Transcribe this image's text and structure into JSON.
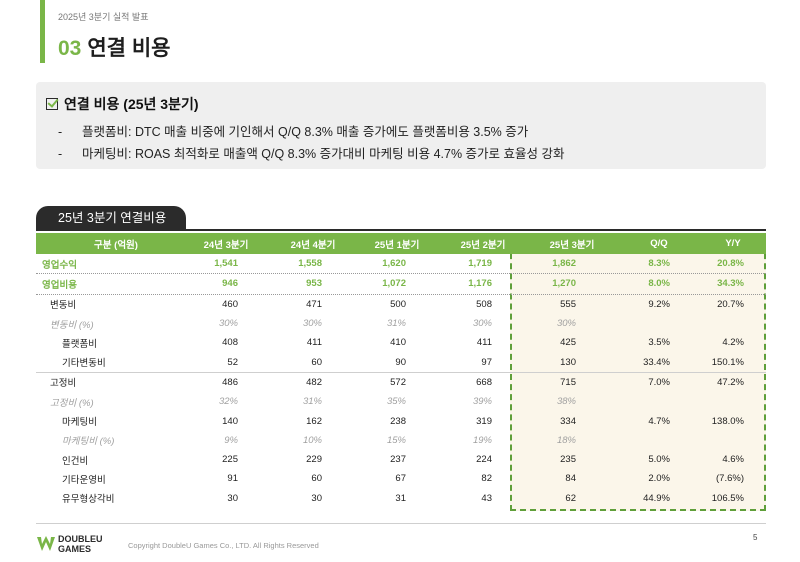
{
  "header": {
    "subtitle": "2025년 3분기 실적 발표",
    "section_number": "03",
    "title": "연결 비용"
  },
  "summary": {
    "heading": "연결 비용 (25년 3분기)",
    "bullets": [
      "플랫폼비: DTC 매출 비중에 기인해서 Q/Q 8.3% 매출 증가에도 플랫폼비용 3.5% 증가",
      "마케팅비: ROAS 최적화로 매출액 Q/Q 8.3% 증가대비 마케팅 비용 4.7% 증가로 효율성 강화"
    ],
    "bullet_marker": "-"
  },
  "table": {
    "tag": "25년 3분기 연결비용",
    "columns": [
      "구분 (억원)",
      "24년 3분기",
      "24년 4분기",
      "25년 1분기",
      "25년 2분기",
      "25년 3분기",
      "Q/Q",
      "Y/Y"
    ],
    "rows": [
      [
        "영업수익",
        "1,541",
        "1,558",
        "1,620",
        "1,719",
        "1,862",
        "8.3%",
        "20.8%"
      ],
      [
        "영업비용",
        "946",
        "953",
        "1,072",
        "1,176",
        "1,270",
        "8.0%",
        "34.3%"
      ],
      [
        "변동비",
        "460",
        "471",
        "500",
        "508",
        "555",
        "9.2%",
        "20.7%"
      ],
      [
        "변동비 (%)",
        "30%",
        "30%",
        "31%",
        "30%",
        "30%",
        "",
        ""
      ],
      [
        "플랫폼비",
        "408",
        "411",
        "410",
        "411",
        "425",
        "3.5%",
        "4.2%"
      ],
      [
        "기타변동비",
        "52",
        "60",
        "90",
        "97",
        "130",
        "33.4%",
        "150.1%"
      ],
      [
        "고정비",
        "486",
        "482",
        "572",
        "668",
        "715",
        "7.0%",
        "47.2%"
      ],
      [
        "고정비 (%)",
        "32%",
        "31%",
        "35%",
        "39%",
        "38%",
        "",
        ""
      ],
      [
        "마케팅비",
        "140",
        "162",
        "238",
        "319",
        "334",
        "4.7%",
        "138.0%"
      ],
      [
        "마케팅비 (%)",
        "9%",
        "10%",
        "15%",
        "19%",
        "18%",
        "",
        ""
      ],
      [
        "인건비",
        "225",
        "229",
        "237",
        "224",
        "235",
        "5.0%",
        "4.6%"
      ],
      [
        "기타운영비",
        "91",
        "60",
        "67",
        "82",
        "84",
        "2.0%",
        "(7.6%)"
      ],
      [
        "유무형상각비",
        "30",
        "30",
        "31",
        "43",
        "62",
        "44.9%",
        "106.5%"
      ]
    ]
  },
  "footer": {
    "logo_line1": "DOUBLEU",
    "logo_line2": "GAMES",
    "copyright": "Copyright DoubleU Games Co., LTD. All Rights Reserved",
    "page_number": "5"
  },
  "colors": {
    "accent": "#7ab648",
    "highlight_bg": "#fbf6ea",
    "highlight_border": "#5f9f3a",
    "tag_bg": "#2b2b2b"
  }
}
